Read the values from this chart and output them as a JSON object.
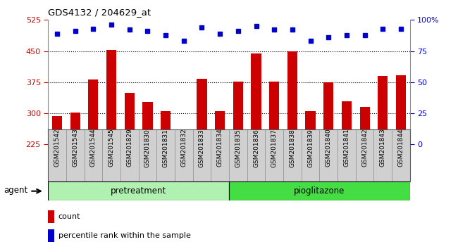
{
  "title": "GDS4132 / 204629_at",
  "categories": [
    "GSM201542",
    "GSM201543",
    "GSM201544",
    "GSM201545",
    "GSM201829",
    "GSM201830",
    "GSM201831",
    "GSM201832",
    "GSM201833",
    "GSM201834",
    "GSM201835",
    "GSM201836",
    "GSM201837",
    "GSM201838",
    "GSM201839",
    "GSM201840",
    "GSM201841",
    "GSM201842",
    "GSM201843",
    "GSM201844"
  ],
  "bar_values": [
    293,
    301,
    381,
    453,
    349,
    327,
    305,
    232,
    383,
    305,
    377,
    444,
    377,
    449,
    305,
    375,
    329,
    316,
    390,
    392
  ],
  "percentile_values": [
    89,
    91,
    93,
    96,
    92,
    91,
    88,
    83,
    94,
    89,
    91,
    95,
    92,
    92,
    83,
    86,
    88,
    88,
    93,
    93
  ],
  "ylim_left": [
    225,
    525
  ],
  "ylim_right": [
    0,
    100
  ],
  "yticks_left": [
    225,
    300,
    375,
    450,
    525
  ],
  "yticks_right": [
    0,
    25,
    50,
    75,
    100
  ],
  "bar_color": "#cc0000",
  "dot_color": "#0000cc",
  "pretreatment_label": "pretreatment",
  "pioglitazone_label": "pioglitazone",
  "pretreatment_count": 10,
  "pioglitazone_count": 10,
  "agent_label": "agent",
  "legend_bar_label": "count",
  "legend_dot_label": "percentile rank within the sample",
  "pretreatment_color": "#b0f0b0",
  "pioglitazone_color": "#44dd44",
  "left_axis_color": "#cc0000",
  "right_axis_color": "#0000cc",
  "xtick_bg_color": "#d0d0d0",
  "plot_bg_color": "#ffffff"
}
